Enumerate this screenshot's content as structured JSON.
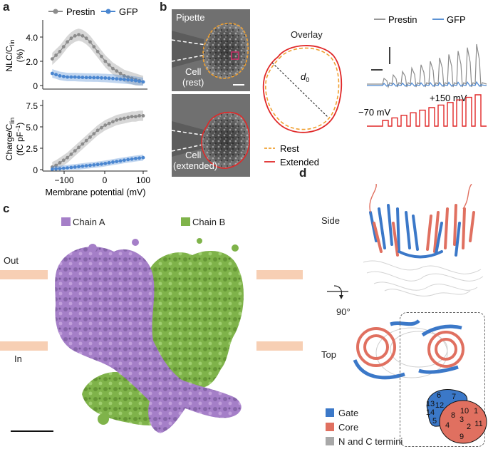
{
  "panel_labels": {
    "a": "a",
    "b": "b",
    "c": "c",
    "d": "d"
  },
  "panel_a": {
    "top": {
      "legend": [
        "Prestin",
        "GFP"
      ],
      "ylabel_line1": "NLC/C",
      "ylabel_sub": "lin",
      "ylabel_line2": "(%)",
      "yticks": [
        "4.0",
        "2.0",
        "0"
      ]
    },
    "bottom": {
      "ylabel_line1": "Charge/C",
      "ylabel_sub": "lin",
      "ylabel_line2": "(fC pF",
      "ylabel_sup": "−1",
      "ylabel_close": ")",
      "yticks": [
        "7.5",
        "5.0",
        "2.5",
        "0"
      ]
    },
    "xticks": [
      "−100",
      "0",
      "100"
    ],
    "xlabel": "Membrane potential (mV)"
  },
  "chart_data": [
    {
      "type": "line",
      "xlim": [
        -150,
        100
      ],
      "ylim": [
        0,
        5
      ],
      "series": [
        {
          "name": "Prestin",
          "x": [
            -140,
            -130,
            -120,
            -110,
            -100,
            -90,
            -80,
            -70,
            -60,
            -50,
            -40,
            -30,
            -20,
            -10,
            0,
            10,
            20,
            30,
            40,
            50,
            60,
            70,
            80,
            90,
            100
          ],
          "y": [
            2.2,
            2.5,
            2.8,
            3.2,
            3.6,
            3.9,
            4.1,
            4.2,
            4.1,
            3.9,
            3.6,
            3.2,
            2.8,
            2.4,
            2.0,
            1.7,
            1.4,
            1.2,
            1.0,
            0.8,
            0.7,
            0.6,
            0.5,
            0.4,
            0.3
          ],
          "band": 0.5
        },
        {
          "name": "GFP",
          "x": [
            -140,
            -130,
            -120,
            -110,
            -100,
            -90,
            -80,
            -70,
            -60,
            -50,
            -40,
            -30,
            -20,
            -10,
            0,
            10,
            20,
            30,
            40,
            50,
            60,
            70,
            80,
            90,
            100
          ],
          "y": [
            1.0,
            0.9,
            0.8,
            0.75,
            0.7,
            0.7,
            0.7,
            0.68,
            0.67,
            0.66,
            0.66,
            0.65,
            0.65,
            0.63,
            0.62,
            0.6,
            0.58,
            0.55,
            0.52,
            0.5,
            0.47,
            0.44,
            0.4,
            0.35,
            0.3
          ],
          "band": 0.35
        }
      ]
    },
    {
      "type": "line",
      "xlim": [
        -150,
        100
      ],
      "ylim": [
        0,
        7.5
      ],
      "series": [
        {
          "name": "Prestin",
          "x": [
            -140,
            -130,
            -120,
            -110,
            -100,
            -90,
            -80,
            -70,
            -60,
            -50,
            -40,
            -30,
            -20,
            -10,
            0,
            10,
            20,
            30,
            40,
            50,
            60,
            70,
            80,
            90,
            100
          ],
          "y": [
            0.3,
            0.5,
            0.8,
            1.1,
            1.4,
            1.8,
            2.2,
            2.6,
            3.0,
            3.4,
            3.8,
            4.2,
            4.6,
            4.9,
            5.2,
            5.4,
            5.6,
            5.8,
            5.9,
            6.0,
            6.1,
            6.2,
            6.2,
            6.3,
            6.3
          ],
          "band": 0.6
        },
        {
          "name": "GFP",
          "x": [
            -140,
            -130,
            -120,
            -110,
            -100,
            -90,
            -80,
            -70,
            -60,
            -50,
            -40,
            -30,
            -20,
            -10,
            0,
            10,
            20,
            30,
            40,
            50,
            60,
            70,
            80,
            90,
            100
          ],
          "y": [
            0.05,
            0.08,
            0.1,
            0.15,
            0.2,
            0.25,
            0.3,
            0.35,
            0.4,
            0.45,
            0.5,
            0.55,
            0.6,
            0.65,
            0.72,
            0.8,
            0.88,
            0.95,
            1.02,
            1.1,
            1.17,
            1.23,
            1.3,
            1.35,
            1.4
          ],
          "band": 0.35
        }
      ]
    }
  ],
  "panel_b": {
    "micro_top": {
      "pipette": "Pipette",
      "cell": "Cell",
      "state": "(rest)"
    },
    "micro_bottom": {
      "cell": "Cell",
      "state": "(extended)"
    },
    "overlay_title": "Overlay",
    "d0_label": "d",
    "d0_sub": "0",
    "legend_rest": "Rest",
    "legend_extended": "Extended",
    "trace_legend": [
      "Prestin",
      "GFP"
    ],
    "voltage_high": "+150 mV",
    "voltage_low": "−70 mV"
  },
  "panel_c": {
    "chain_a": "Chain A",
    "chain_b": "Chain B",
    "out_label": "Out",
    "in_label": "In"
  },
  "panel_d": {
    "side_label": "Side",
    "rotation_label": "90°",
    "top_label": "Top",
    "legend": [
      {
        "label": "Gate",
        "color": "#3b78c8"
      },
      {
        "label": "Core",
        "color": "#e07060"
      },
      {
        "label": "N and C termini",
        "color": "#a8a8a8"
      }
    ],
    "gate_numbers": [
      "6",
      "7",
      "13",
      "12",
      "14",
      "5"
    ],
    "core_numbers": [
      "10",
      "1",
      "8",
      "3",
      "4",
      "11",
      "2",
      "9"
    ]
  },
  "colors": {
    "prestin": "#8c8c8c",
    "gfp": "#4a86d0",
    "chain_a": "#a57fc8",
    "chain_b": "#7fb34a",
    "rest": "#f0a030",
    "extended": "#e02828",
    "membrane": "#f7cfb4"
  }
}
